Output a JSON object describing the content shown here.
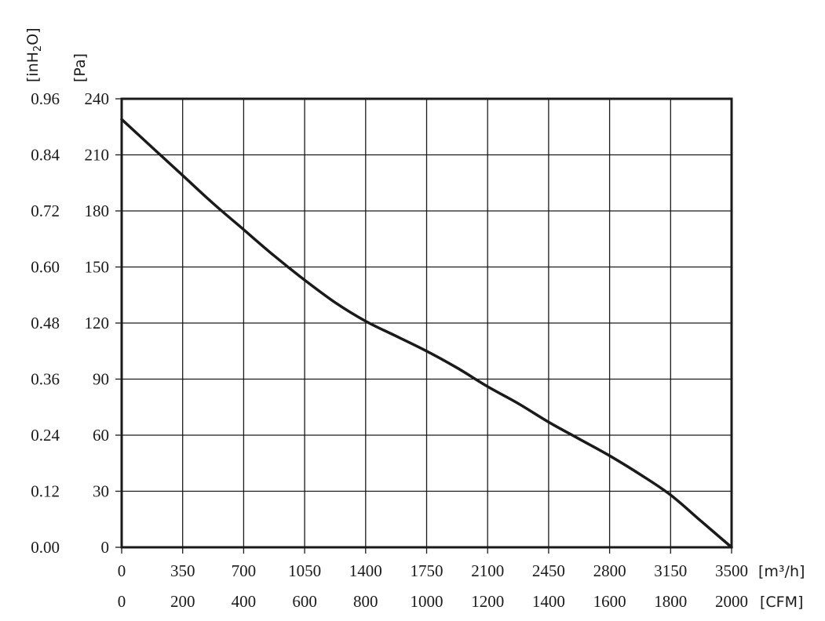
{
  "chart_data": {
    "type": "line",
    "y_axis_primary": {
      "unit_label": "[Pa]",
      "ticks": [
        "0",
        "30",
        "60",
        "90",
        "120",
        "150",
        "180",
        "210",
        "240"
      ],
      "ylim": [
        0,
        240
      ]
    },
    "y_axis_secondary": {
      "unit_label_text": "[inH",
      "unit_label_sub": "2",
      "unit_label_end": "O]",
      "ticks": [
        "0.00",
        "0.12",
        "0.24",
        "0.36",
        "0.48",
        "0.60",
        "0.72",
        "0.84",
        "0.96"
      ]
    },
    "x_axis_primary": {
      "unit_label": "[m³/h]",
      "ticks": [
        "0",
        "350",
        "700",
        "1050",
        "1400",
        "1750",
        "2100",
        "2450",
        "2800",
        "3150",
        "3500"
      ],
      "xlim": [
        0,
        3500
      ]
    },
    "x_axis_secondary": {
      "unit_label": "[CFM]",
      "ticks": [
        "0",
        "200",
        "400",
        "600",
        "800",
        "1000",
        "1200",
        "1400",
        "1600",
        "1800",
        "2000"
      ]
    },
    "grid": true,
    "series": [
      {
        "color": "#1a1a1a",
        "x": [
          0,
          175,
          350,
          525,
          700,
          875,
          1050,
          1225,
          1400,
          1575,
          1750,
          1925,
          2100,
          2275,
          2450,
          2625,
          2800,
          2975,
          3150,
          3325,
          3500
        ],
        "y": [
          229,
          214,
          199,
          184,
          170,
          156,
          143,
          131,
          121,
          113,
          105,
          96,
          86,
          77,
          67,
          58,
          49,
          39,
          28,
          14,
          0
        ]
      }
    ]
  }
}
